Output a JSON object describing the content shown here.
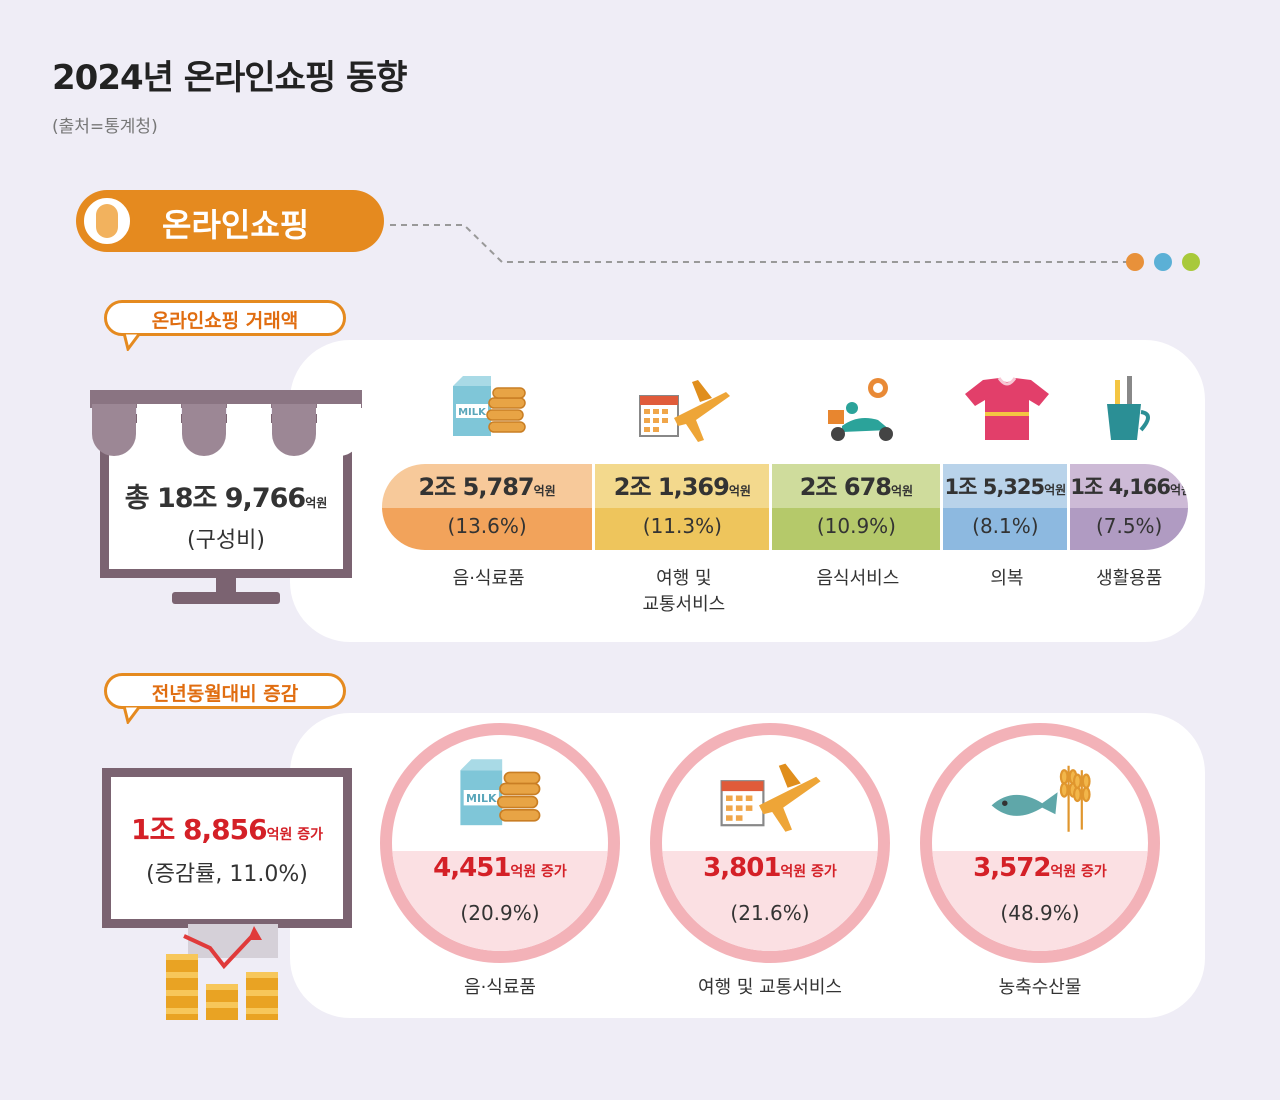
{
  "header": {
    "title": "2024년 온라인쇼핑 동향",
    "source": "(출처=통계청)"
  },
  "badge": {
    "label": "온라인쇼핑"
  },
  "section1": {
    "bubble": "온라인쇼핑 거래액",
    "total_prefix": "총 18조 9,766",
    "total_unit": "억원",
    "total_note": "(구성비)"
  },
  "section2": {
    "bubble": "전년동월대비 증감",
    "total_value": "1조 8,856",
    "total_unit": "억원 증가",
    "total_note": "(증감률, 11.0%)"
  },
  "colors": {
    "accent": "#e58a1f",
    "red": "#d42027",
    "dot1": "#e8913a",
    "dot2": "#5bb0d6",
    "dot3": "#a8c93a"
  },
  "chart_data": [
    {
      "type": "bar",
      "categories": [
        "음·식료품",
        "여행 및 교통서비스",
        "음식서비스",
        "의복",
        "생활용품"
      ],
      "amount_labels": [
        "2조 5,787",
        "2조 1,369",
        "2조 678",
        "1조 5,325",
        "1조 4,166"
      ],
      "amount_unit": "억원",
      "values": [
        25787,
        21369,
        20678,
        15325,
        14166
      ],
      "share_labels": [
        "(13.6%)",
        "(11.3%)",
        "(10.9%)",
        "(8.1%)",
        "(7.5%)"
      ],
      "shares": [
        13.6,
        11.3,
        10.9,
        8.1,
        7.5
      ],
      "category_lines": [
        [
          "음·식료품"
        ],
        [
          "여행 및",
          "교통서비스"
        ],
        [
          "음식서비스"
        ],
        [
          "의복"
        ],
        [
          "생활용품"
        ]
      ],
      "icons": [
        "milk-cookies-icon",
        "calendar-airplane-icon",
        "delivery-scooter-icon",
        "tshirt-icon",
        "toothbrush-cup-icon"
      ],
      "colors_top": [
        "#f7c99a",
        "#f3d98d",
        "#cfdc9c",
        "#b9d3ea",
        "#cdbad6"
      ],
      "colors_bottom": [
        "#f2a35b",
        "#eec55c",
        "#b5c96a",
        "#8db9e0",
        "#b09bc2"
      ]
    },
    {
      "type": "bar",
      "categories": [
        "음·식료품",
        "여행 및 교통서비스",
        "농축수산물"
      ],
      "increase_labels": [
        "4,451",
        "3,801",
        "3,572"
      ],
      "increase_unit": "억원 증가",
      "values": [
        4451,
        3801,
        3572
      ],
      "rate_labels": [
        "(20.9%)",
        "(21.6%)",
        "(48.9%)"
      ],
      "rates": [
        20.9,
        21.6,
        48.9
      ],
      "icons": [
        "milk-cookies-icon",
        "calendar-airplane-icon",
        "fish-wheat-icon"
      ]
    }
  ]
}
